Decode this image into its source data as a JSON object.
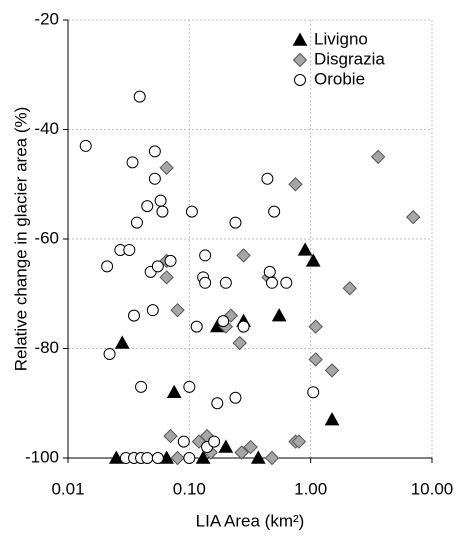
{
  "chart_data": {
    "type": "scatter",
    "x_label": "LIA Area (km²)",
    "y_label": "Relative change in glacier area (%)",
    "xlim": [
      0.01,
      10
    ],
    "log_x": true,
    "xticks": [
      {
        "value": 0.01,
        "label": "0.01"
      },
      {
        "value": 0.1,
        "label": "0.10"
      },
      {
        "value": 1,
        "label": "1.00"
      },
      {
        "value": 10,
        "label": "10.00"
      }
    ],
    "ylim": [
      -100,
      -20
    ],
    "yticks": [
      -100,
      -80,
      -60,
      -40,
      -20
    ],
    "grid": true,
    "legend": "top-right",
    "series": [
      {
        "name": "Livigno",
        "marker": "triangle",
        "color": "#000000",
        "x": [
          0.025,
          0.028,
          0.065,
          0.075,
          0.13,
          0.17,
          0.2,
          0.28,
          0.37,
          0.55,
          0.9,
          1.05,
          1.5
        ],
        "values": [
          -100,
          -79,
          -100,
          -88,
          -100,
          -76,
          -98,
          -75,
          -100,
          -74,
          -62,
          -64,
          -93
        ]
      },
      {
        "name": "Disgrazia",
        "marker": "diamond",
        "color": "#a6a6a6",
        "x": [
          0.065,
          0.065,
          0.065,
          0.07,
          0.08,
          0.08,
          0.12,
          0.14,
          0.15,
          0.2,
          0.22,
          0.28,
          0.26,
          0.27,
          0.32,
          0.45,
          0.48,
          0.75,
          0.75,
          0.8,
          1.1,
          1.1,
          1.5,
          2.1,
          3.6,
          7
        ],
        "values": [
          -47,
          -64,
          -67,
          -96,
          -73,
          -100,
          -97,
          -96,
          -99,
          -76,
          -74,
          -63,
          -79,
          -99,
          -98,
          -67,
          -100,
          -50,
          -97,
          -97,
          -76,
          -82,
          -84,
          -69,
          -45,
          -56
        ]
      },
      {
        "name": "Orobie",
        "marker": "circle",
        "color": "#ffffff",
        "x": [
          0.014,
          0.021,
          0.022,
          0.027,
          0.032,
          0.034,
          0.035,
          0.037,
          0.039,
          0.04,
          0.045,
          0.048,
          0.05,
          0.052,
          0.052,
          0.055,
          0.058,
          0.06,
          0.07,
          0.03,
          0.035,
          0.04,
          0.045,
          0.055,
          0.09,
          0.1,
          0.1,
          0.105,
          0.115,
          0.13,
          0.135,
          0.135,
          0.14,
          0.16,
          0.17,
          0.19,
          0.2,
          0.24,
          0.24,
          0.28,
          0.44,
          0.46,
          0.5,
          0.48,
          0.63,
          1.05
        ],
        "values": [
          -43,
          -65,
          -81,
          -62,
          -62,
          -46,
          -74,
          -57,
          -34,
          -87,
          -54,
          -66,
          -73,
          -49,
          -44,
          -65,
          -53,
          -55,
          -64,
          -100,
          -100,
          -100,
          -100,
          -100,
          -97,
          -100,
          -87,
          -55,
          -76,
          -67,
          -68,
          -63,
          -98,
          -97,
          -90,
          -75,
          -68,
          -57,
          -89,
          -76,
          -49,
          -66,
          -55,
          -68,
          -68,
          -88
        ]
      }
    ]
  }
}
